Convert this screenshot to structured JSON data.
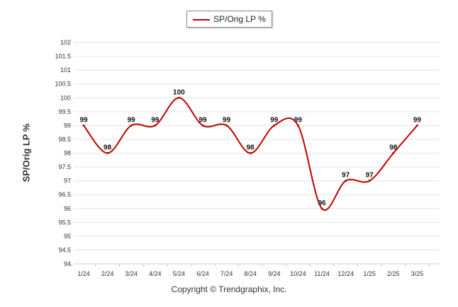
{
  "chart_data": {
    "type": "line",
    "categories": [
      "1/24",
      "2/24",
      "3/24",
      "4/24",
      "5/24",
      "6/24",
      "7/24",
      "8/24",
      "9/24",
      "10/24",
      "11/24",
      "12/24",
      "1/25",
      "2/25",
      "3/25"
    ],
    "series": [
      {
        "name": "SP/Orig LP %",
        "values": [
          99,
          98,
          99,
          99,
          100,
          99,
          99,
          98,
          99,
          99,
          96,
          97,
          97,
          98,
          99
        ],
        "color": "#c00000"
      }
    ],
    "ylabel": "SP/Orig LP %",
    "ylim": [
      94,
      102
    ],
    "yticks": [
      94,
      94.5,
      95,
      95.5,
      96,
      96.5,
      97,
      97.5,
      98,
      98.5,
      99,
      99.5,
      100,
      100.5,
      101,
      101.5,
      102
    ],
    "ytick_labels": [
      "94",
      "94.5",
      "95",
      "95.5",
      "96",
      "96.5",
      "97",
      "97.5",
      "98",
      "98.5",
      "99",
      "99.5",
      "100",
      "100.5",
      "101",
      "101.5",
      "102"
    ],
    "grid": true,
    "legend": "top-center",
    "data_labels": true
  },
  "footer": "Copyright © Trendgraphix, Inc."
}
